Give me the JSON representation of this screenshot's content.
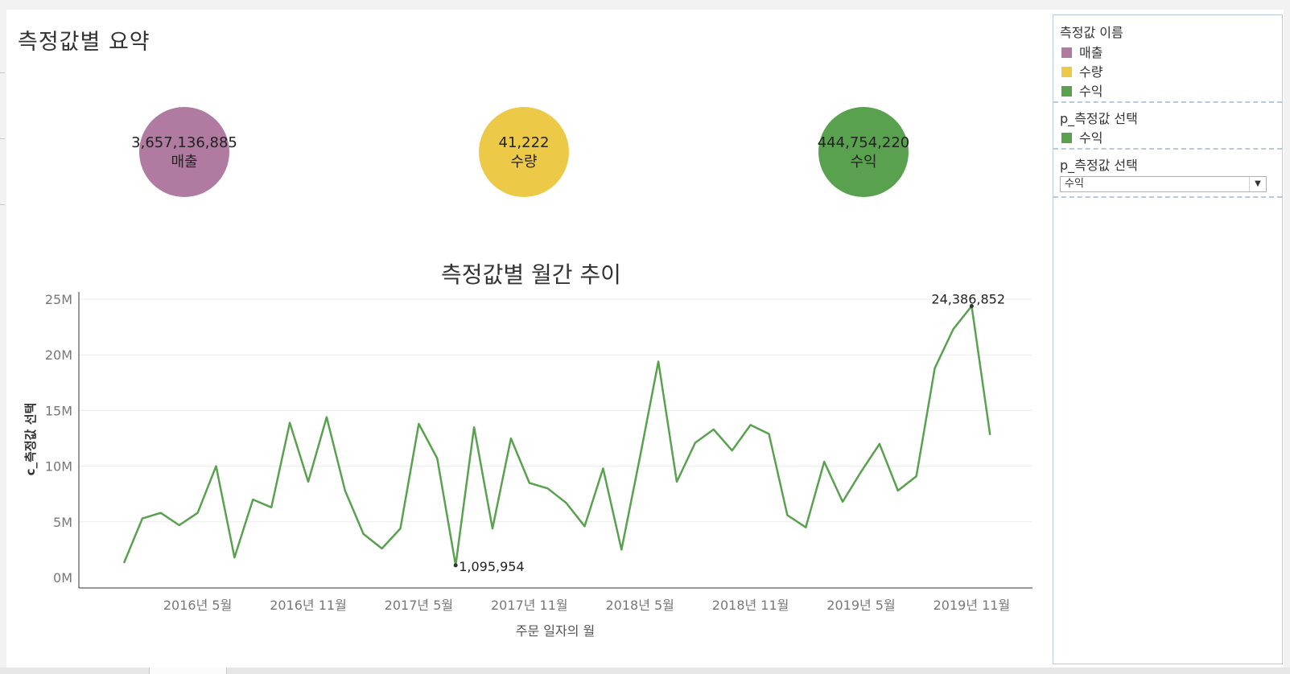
{
  "dashboard": {
    "title": "측정값별 요약",
    "kpis": [
      {
        "value": "3,657,136,885",
        "label": "매출",
        "color": "#b07aa1"
      },
      {
        "value": "41,222",
        "label": "수량",
        "color": "#edc948"
      },
      {
        "value": "444,754,220",
        "label": "수익",
        "color": "#59a14f"
      }
    ]
  },
  "legend": {
    "measure_names_title": "측정값 이름",
    "measure_items": [
      {
        "label": "매출",
        "color": "#b07aa1"
      },
      {
        "label": "수량",
        "color": "#edc948"
      },
      {
        "label": "수익",
        "color": "#59a14f"
      }
    ],
    "param_color_title": "p_측정값 선택",
    "param_color_item": {
      "label": "수익",
      "color": "#59a14f"
    },
    "param_select_title": "p_측정값 선택",
    "param_select_value": "수익"
  },
  "chart_data": {
    "type": "line",
    "title": "측정값별 월간 추이",
    "xlabel": "주문 일자의 월",
    "ylabel": "c_측정값 선택",
    "x_tick_labels": [
      "2016년 5월",
      "2016년 11월",
      "2017년 5월",
      "2017년 11월",
      "2018년 5월",
      "2018년 11월",
      "2019년 5월",
      "2019년 11월"
    ],
    "y_tick_labels": [
      "0M",
      "5M",
      "10M",
      "15M",
      "20M",
      "25M"
    ],
    "ylim": [
      0,
      25000000
    ],
    "grid": true,
    "series": [
      {
        "color": "#59a14f",
        "x": [
          "2016-01",
          "2016-02",
          "2016-03",
          "2016-04",
          "2016-05",
          "2016-06",
          "2016-07",
          "2016-08",
          "2016-09",
          "2016-10",
          "2016-11",
          "2016-12",
          "2017-01",
          "2017-02",
          "2017-03",
          "2017-04",
          "2017-05",
          "2017-06",
          "2017-07",
          "2017-08",
          "2017-09",
          "2017-10",
          "2017-11",
          "2017-12",
          "2018-01",
          "2018-02",
          "2018-03",
          "2018-04",
          "2018-05",
          "2018-06",
          "2018-07",
          "2018-08",
          "2018-09",
          "2018-10",
          "2018-11",
          "2018-12",
          "2019-01",
          "2019-02",
          "2019-03",
          "2019-04",
          "2019-05",
          "2019-06",
          "2019-07",
          "2019-08",
          "2019-09",
          "2019-10",
          "2019-11",
          "2019-12"
        ],
        "values": [
          1300000,
          5300000,
          5800000,
          4700000,
          5800000,
          10000000,
          1800000,
          7000000,
          6300000,
          13900000,
          8600000,
          14400000,
          7800000,
          3900000,
          2600000,
          4400000,
          13800000,
          10700000,
          1095954,
          13500000,
          4400000,
          12500000,
          8500000,
          8000000,
          6700000,
          4600000,
          9800000,
          2500000,
          10800000,
          19400000,
          8600000,
          12100000,
          13300000,
          11400000,
          13700000,
          12900000,
          5600000,
          4500000,
          10400000,
          6800000,
          9500000,
          12000000,
          7800000,
          9100000,
          18800000,
          22300000,
          24386852,
          12800000
        ]
      }
    ],
    "annotations": [
      {
        "x": "2017-07",
        "value": 1095954,
        "text": "1,095,954"
      },
      {
        "x": "2019-11",
        "value": 24386852,
        "text": "24,386,852"
      }
    ]
  }
}
